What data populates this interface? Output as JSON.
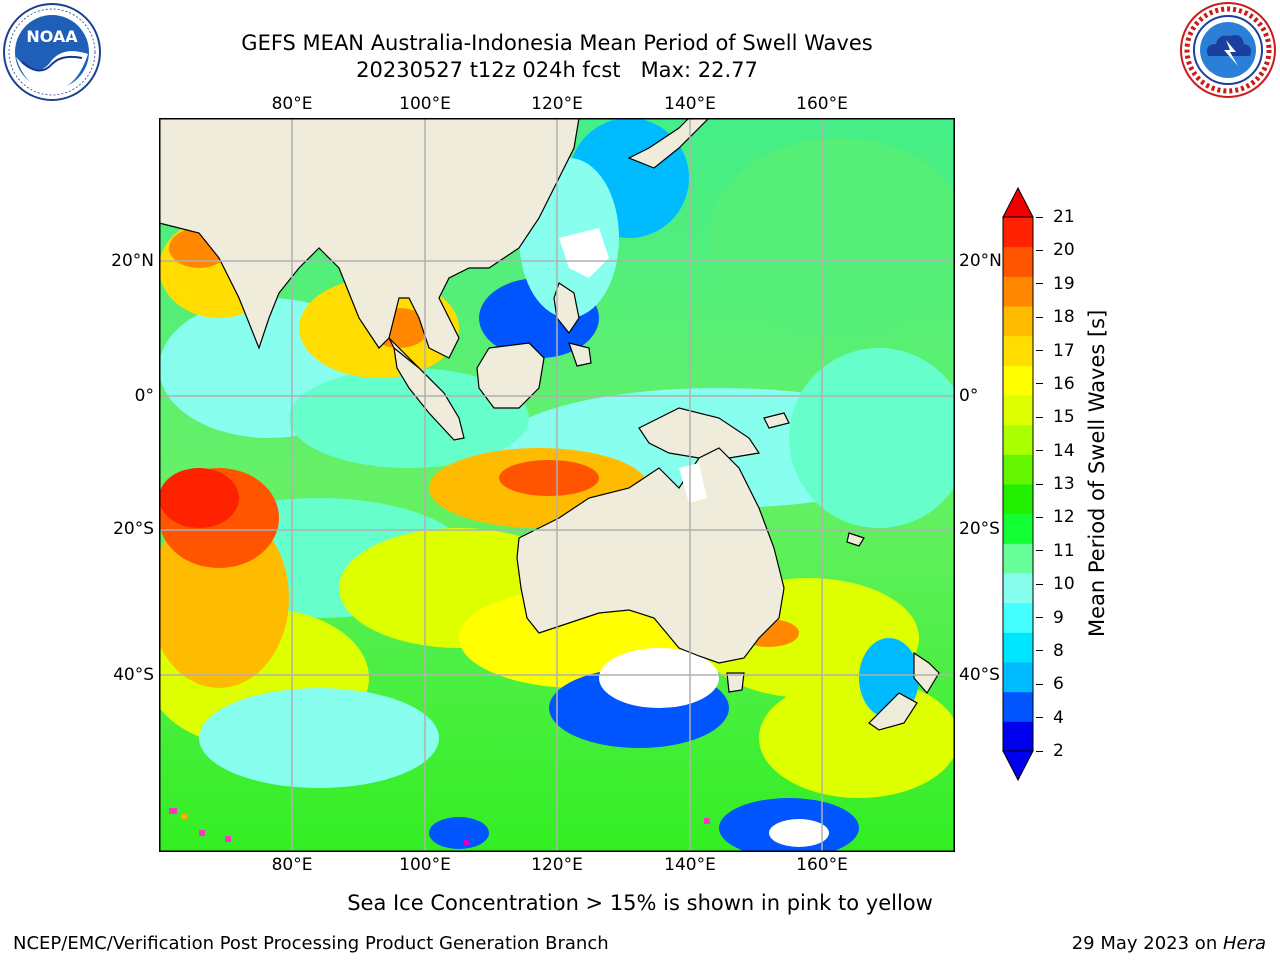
{
  "title": {
    "line1": "GEFS MEAN Australia-Indonesia Mean Period of Swell Waves",
    "line2": "20230527 t12z 024h fcst   Max: 22.77"
  },
  "logos": {
    "left": {
      "icon": "noaa-logo",
      "text": "NOAA"
    },
    "right": {
      "icon": "nws-logo"
    }
  },
  "map": {
    "lon_labels": [
      "80°E",
      "100°E",
      "120°E",
      "140°E",
      "160°E"
    ],
    "lat_labels": [
      "20°N",
      "0°",
      "20°S",
      "40°S"
    ],
    "land_color": "#efecdc",
    "grid_color": "#b0b0b0"
  },
  "colorbar": {
    "label": "Mean Period of Swell Waves [s]",
    "ticks": [
      "21",
      "20",
      "19",
      "18",
      "17",
      "16",
      "15",
      "14",
      "13",
      "12",
      "11",
      "10",
      "9",
      "8",
      "6",
      "4",
      "2"
    ],
    "colors_low_to_high": [
      "#0000ee",
      "#0055ff",
      "#00bbff",
      "#00e5ff",
      "#44ffff",
      "#88ffee",
      "#66ff99",
      "#11ff33",
      "#22ee00",
      "#66f500",
      "#aaff00",
      "#ddff00",
      "#ffff00",
      "#ffdd00",
      "#ffbb00",
      "#ff8800",
      "#ff5500",
      "#ff2200"
    ],
    "under_color": "#0000ee",
    "over_color": "#ee0000"
  },
  "footer": {
    "note": "Sea Ice Concentration > 15% is shown in pink to yellow",
    "credit": "NCEP/EMC/Verification Post Processing Product Generation Branch",
    "date": "29 May 2023 on ",
    "machine": "Hera"
  }
}
